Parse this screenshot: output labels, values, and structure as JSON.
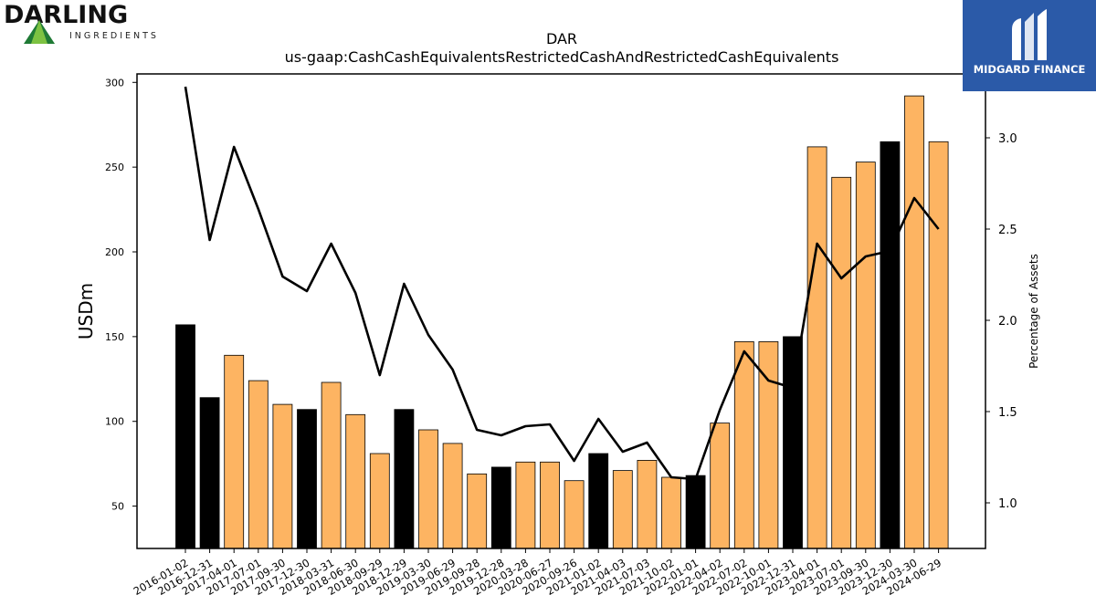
{
  "logos": {
    "left_word": "DARLING",
    "left_sub": "INGREDIENTS",
    "right_name": "MIDGARD FINANCE"
  },
  "chart_data": {
    "type": "bar",
    "title": "DAR",
    "subtitle": "us-gaap:CashCashEquivalentsRestrictedCashAndRestrictedCashEquivalents",
    "ylabel": "USDm",
    "y2label": "Percentage of Assets",
    "ylim": [
      25,
      305
    ],
    "y2lim": [
      0.75,
      3.35
    ],
    "yticks": [
      50,
      100,
      150,
      200,
      250,
      300
    ],
    "y2ticks": [
      1.0,
      1.5,
      2.0,
      2.5,
      3.0
    ],
    "y2tick_labels": [
      "1.0",
      "1.5",
      "2.0",
      "2.5",
      "3.0"
    ],
    "categories": [
      "2016-01-02",
      "2016-12-31",
      "2017-04-01",
      "2017-07-01",
      "2017-09-30",
      "2017-12-30",
      "2018-03-31",
      "2018-06-30",
      "2018-09-29",
      "2018-12-29",
      "2019-03-30",
      "2019-06-29",
      "2019-09-28",
      "2019-12-28",
      "2020-03-28",
      "2020-06-27",
      "2020-09-26",
      "2021-01-02",
      "2021-04-03",
      "2021-07-03",
      "2021-10-02",
      "2022-01-01",
      "2022-04-02",
      "2022-07-02",
      "2022-10-01",
      "2022-12-31",
      "2023-04-01",
      "2023-07-01",
      "2023-09-30",
      "2023-12-30",
      "2024-03-30",
      "2024-06-29"
    ],
    "series": [
      {
        "type": "bar",
        "values": [
          157,
          114,
          139,
          124,
          110,
          107,
          123,
          104,
          81,
          107,
          95,
          87,
          69,
          73,
          76,
          76,
          65,
          81,
          71,
          77,
          67,
          68,
          99,
          147,
          147,
          150,
          262,
          244,
          253,
          265,
          292,
          265
        ],
        "highlight": [
          true,
          true,
          false,
          false,
          false,
          true,
          false,
          false,
          false,
          true,
          false,
          false,
          false,
          true,
          false,
          false,
          false,
          true,
          false,
          false,
          false,
          true,
          false,
          false,
          false,
          true,
          false,
          false,
          false,
          true,
          false,
          false
        ]
      },
      {
        "type": "line",
        "axis": "right",
        "values": [
          3.28,
          2.44,
          2.95,
          2.61,
          2.24,
          2.16,
          2.42,
          2.15,
          1.7,
          2.2,
          1.92,
          1.73,
          1.4,
          1.37,
          1.42,
          1.43,
          1.23,
          1.46,
          1.28,
          1.33,
          1.14,
          1.13,
          1.51,
          1.83,
          1.67,
          1.63,
          2.42,
          2.23,
          2.35,
          2.38,
          2.67,
          2.5
        ]
      }
    ],
    "colors": {
      "bar": "#fdb462",
      "bar_highlight": "#000000",
      "line": "#000000",
      "background": "#ffffff"
    },
    "grid": false,
    "legend": "none"
  }
}
